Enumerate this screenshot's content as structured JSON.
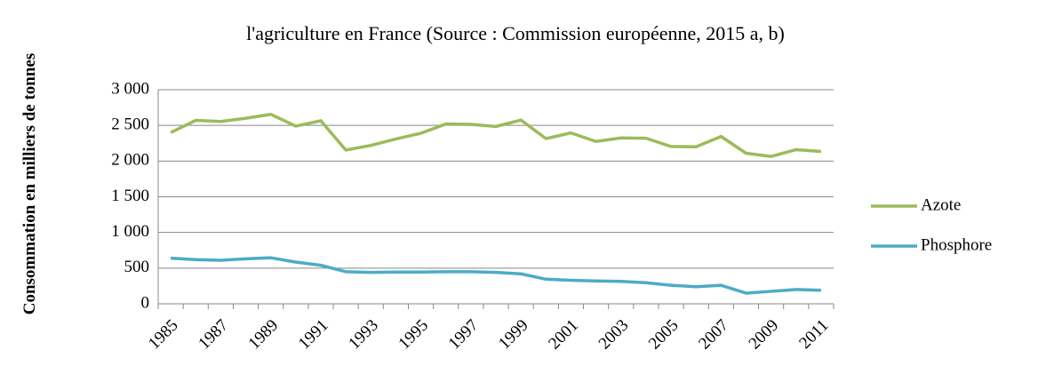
{
  "chart_data": {
    "type": "line",
    "title": "l'agriculture en France (Source : Commission européenne, 2015 a, b)",
    "y_label": "Consommation en milliers de tonnes",
    "categories": [
      "1985",
      null,
      "1987",
      null,
      "1989",
      null,
      "1991",
      null,
      "1993",
      null,
      "1995",
      null,
      "1997",
      null,
      "1999",
      null,
      "2001",
      null,
      "2003",
      null,
      "2005",
      null,
      "2007",
      null,
      "2009",
      null,
      "2011"
    ],
    "series": [
      {
        "name": "Azote",
        "color": "#9bbb59",
        "values": [
          2400,
          2570,
          2555,
          2600,
          2655,
          2490,
          2565,
          2155,
          2220,
          2310,
          2390,
          2520,
          2515,
          2485,
          2575,
          2315,
          2395,
          2275,
          2325,
          2320,
          2205,
          2200,
          2345,
          2110,
          2065,
          2160,
          2135
        ]
      },
      {
        "name": "Phosphore",
        "color": "#4bacc6",
        "values": [
          640,
          620,
          610,
          630,
          645,
          585,
          540,
          450,
          440,
          445,
          445,
          450,
          450,
          440,
          420,
          345,
          330,
          320,
          315,
          295,
          260,
          240,
          260,
          150,
          175,
          200,
          190
        ]
      }
    ],
    "ylim": [
      0,
      3000
    ],
    "yticks": [
      0,
      500,
      {
        "value": 1000,
        "label": "1 000"
      },
      {
        "value": 1500,
        "label": "1 500"
      },
      {
        "value": 2000,
        "label": "2 000"
      },
      {
        "value": 2500,
        "label": "2 500"
      },
      {
        "value": 3000,
        "label": "3 000"
      }
    ],
    "grid": true,
    "legend": "right"
  }
}
